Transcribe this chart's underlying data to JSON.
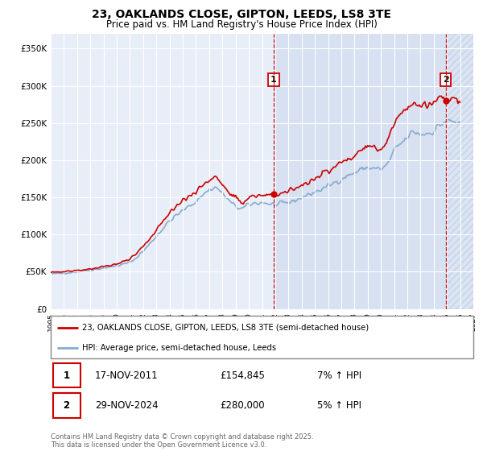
{
  "title": "23, OAKLANDS CLOSE, GIPTON, LEEDS, LS8 3TE",
  "subtitle": "Price paid vs. HM Land Registry's House Price Index (HPI)",
  "title_fontsize": 10,
  "subtitle_fontsize": 8.5,
  "background_color": "#ffffff",
  "plot_bg_color": "#e8eef8",
  "plot_bg_color2": "#dde6f5",
  "hatch_bg_color": "#dde6f5",
  "legend_label_red": "23, OAKLANDS CLOSE, GIPTON, LEEDS, LS8 3TE (semi-detached house)",
  "legend_label_blue": "HPI: Average price, semi-detached house, Leeds",
  "red_color": "#cc0000",
  "blue_color": "#88aacc",
  "annotation1_date": "17-NOV-2011",
  "annotation1_price": "£154,845",
  "annotation1_hpi": "7% ↑ HPI",
  "annotation1_year": 2011.88,
  "annotation1_value": 154845,
  "annotation2_date": "29-NOV-2024",
  "annotation2_price": "£280,000",
  "annotation2_hpi": "5% ↑ HPI",
  "annotation2_year": 2024.91,
  "annotation2_value": 280000,
  "footer": "Contains HM Land Registry data © Crown copyright and database right 2025.\nThis data is licensed under the Open Government Licence v3.0.",
  "ylim": [
    0,
    370000
  ],
  "xlim_start": 1995,
  "xlim_end": 2027,
  "yticks": [
    0,
    50000,
    100000,
    150000,
    200000,
    250000,
    300000,
    350000
  ],
  "ytick_labels": [
    "£0",
    "£50K",
    "£100K",
    "£150K",
    "£200K",
    "£250K",
    "£300K",
    "£350K"
  ]
}
